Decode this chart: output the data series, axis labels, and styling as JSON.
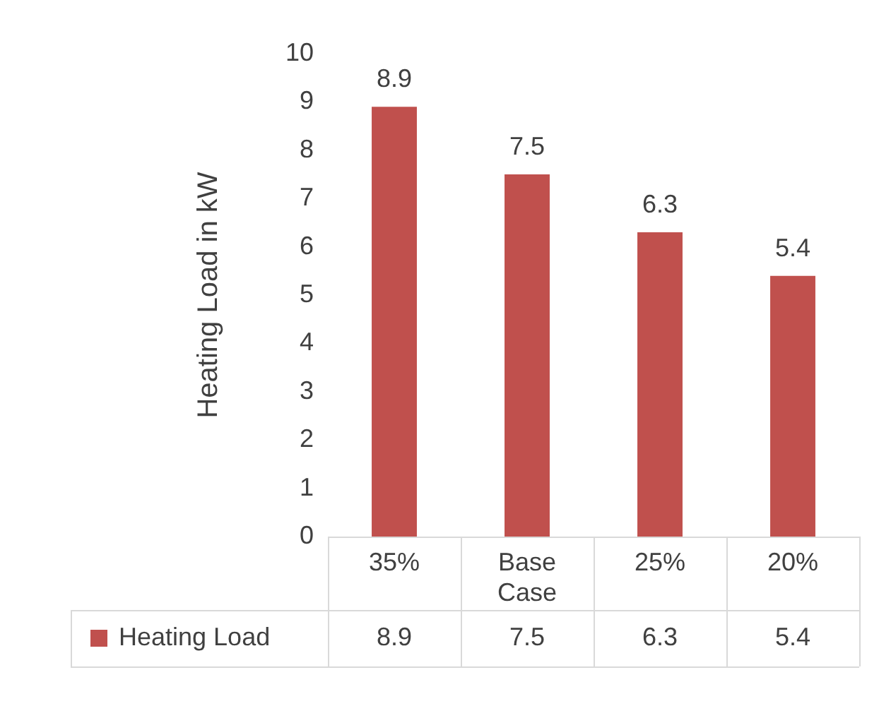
{
  "chart_data": {
    "type": "bar",
    "ylabel": "Heating Load in kW",
    "categories": [
      "35%",
      "Base Case",
      "25%",
      "20%"
    ],
    "series": [
      {
        "name": "Heating Load",
        "color": "#c0504d",
        "values": [
          8.9,
          7.5,
          6.3,
          5.4
        ],
        "value_labels": [
          "8.9",
          "7.5",
          "6.3",
          "5.4"
        ]
      }
    ],
    "ylim": [
      0,
      10
    ],
    "yticks": [
      0,
      1,
      2,
      3,
      4,
      5,
      6,
      7,
      8,
      9,
      10
    ],
    "grid": false,
    "legend": "bottom",
    "annotations": [
      "8.9",
      "7.5",
      "6.3",
      "5.4"
    ]
  }
}
